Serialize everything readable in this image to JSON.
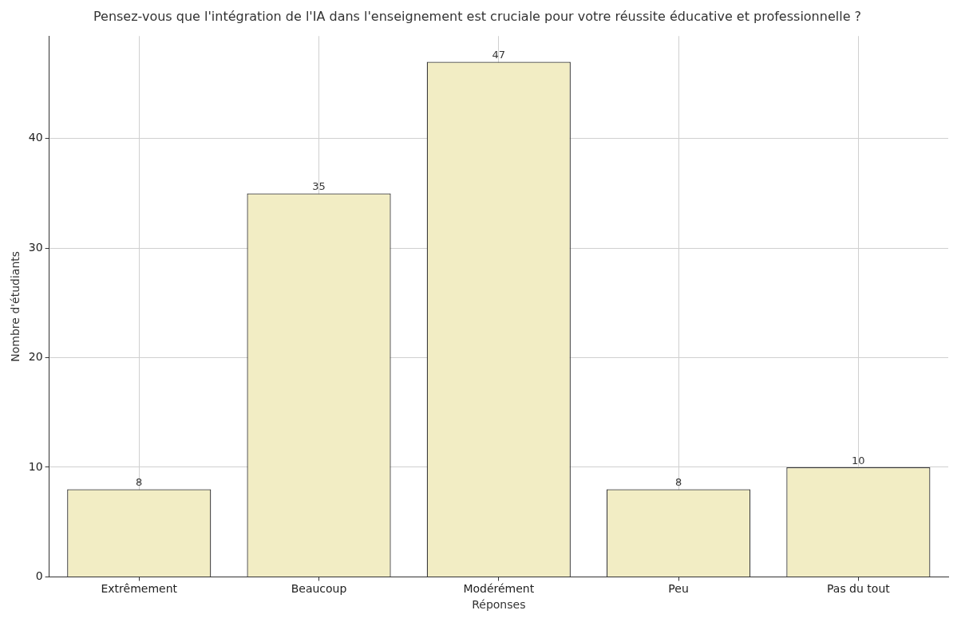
{
  "chart_data": {
    "type": "bar",
    "title": "Pensez-vous que l'intégration de l'IA dans l'enseignement est cruciale pour votre réussite éducative et professionnelle ?",
    "xlabel": "Réponses",
    "ylabel": "Nombre d'étudiants",
    "categories": [
      "Extrêmement",
      "Beaucoup",
      "Modérément",
      "Peu",
      "Pas du tout"
    ],
    "values": [
      8,
      35,
      47,
      8,
      10
    ],
    "color": "#f2edc4",
    "ylim": [
      0,
      49.35
    ],
    "yticks": [
      0,
      10,
      20,
      30,
      40
    ],
    "grid": true,
    "data_labels": true
  }
}
